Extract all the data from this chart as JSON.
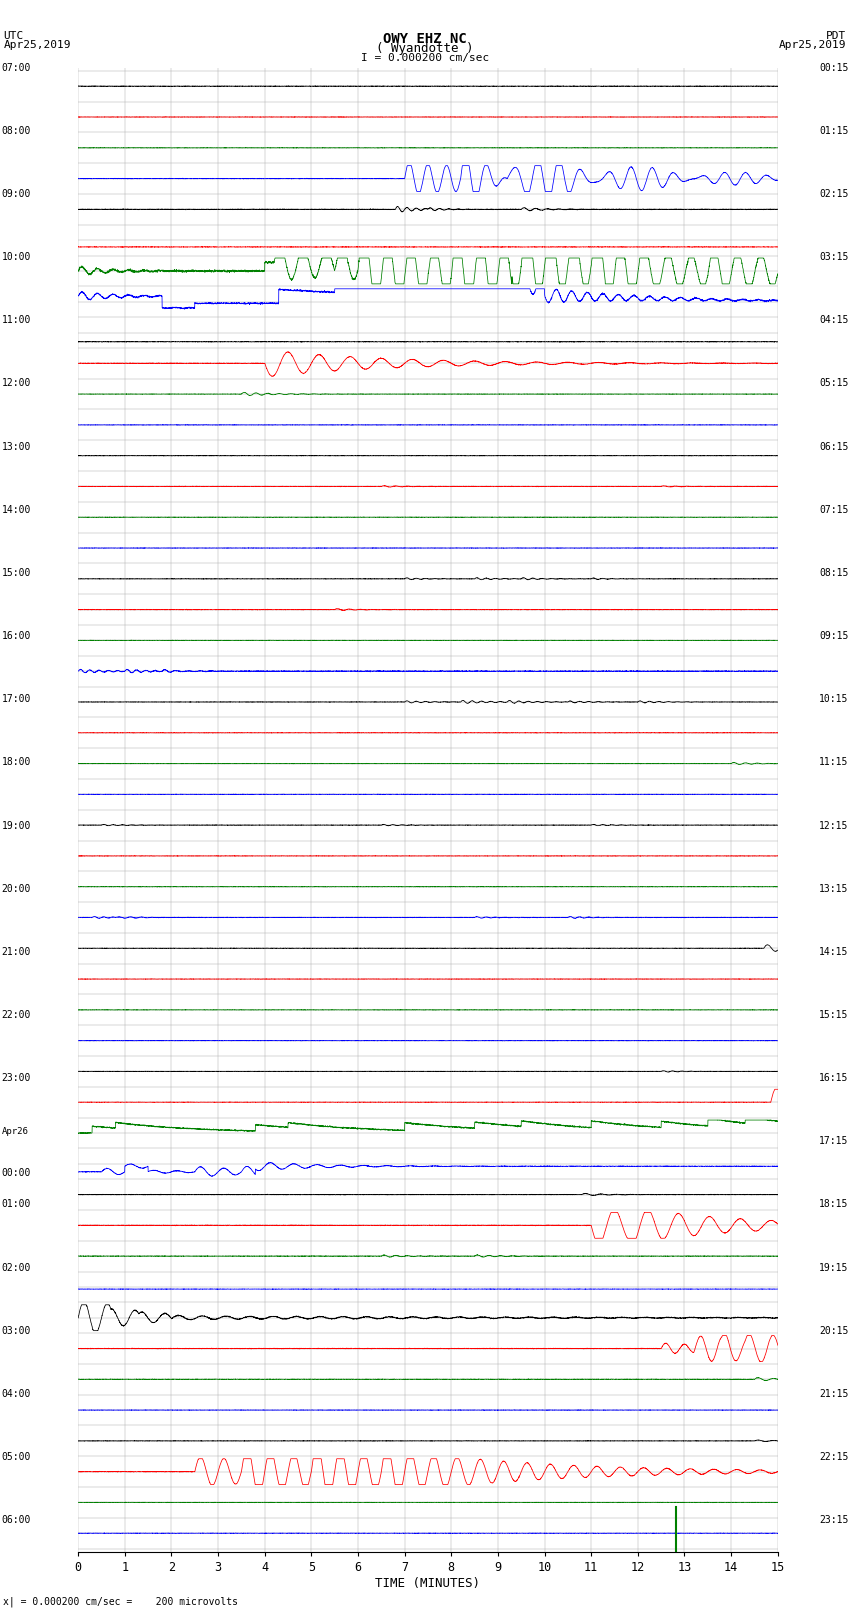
{
  "title_line1": "OWY EHZ NC",
  "title_line2": "( Wyandotte )",
  "scale_label": "I = 0.000200 cm/sec",
  "utc_label": "UTC",
  "utc_date": "Apr25,2019",
  "pdt_label": "PDT",
  "pdt_date": "Apr25,2019",
  "xlabel": "TIME (MINUTES)",
  "footer": "x| = 0.000200 cm/sec =    200 microvolts",
  "xlim": [
    0,
    15
  ],
  "xticks": [
    0,
    1,
    2,
    3,
    4,
    5,
    6,
    7,
    8,
    9,
    10,
    11,
    12,
    13,
    14,
    15
  ],
  "bg_color": "#ffffff",
  "grid_color": "#b0b0b0",
  "n_rows": 48,
  "left_times": [
    "07:00",
    "",
    "08:00",
    "",
    "09:00",
    "",
    "10:00",
    "",
    "11:00",
    "",
    "12:00",
    "",
    "13:00",
    "",
    "14:00",
    "",
    "15:00",
    "",
    "16:00",
    "",
    "17:00",
    "",
    "18:00",
    "",
    "19:00",
    "",
    "20:00",
    "",
    "21:00",
    "",
    "22:00",
    "",
    "23:00",
    "",
    "Apr26",
    "00:00",
    "01:00",
    "",
    "02:00",
    "",
    "03:00",
    "",
    "04:00",
    "",
    "05:00",
    "",
    "06:00",
    ""
  ],
  "right_times": [
    "00:15",
    "",
    "01:15",
    "",
    "02:15",
    "",
    "03:15",
    "",
    "04:15",
    "",
    "05:15",
    "",
    "06:15",
    "",
    "07:15",
    "",
    "08:15",
    "",
    "09:15",
    "",
    "10:15",
    "",
    "11:15",
    "",
    "12:15",
    "",
    "13:15",
    "",
    "14:15",
    "",
    "15:15",
    "",
    "16:15",
    "",
    "17:15",
    "",
    "18:15",
    "",
    "19:15",
    "",
    "20:15",
    "",
    "21:15",
    "",
    "22:15",
    "",
    "23:15",
    ""
  ],
  "trace_colors_cycle": [
    "black",
    "red",
    "green",
    "blue"
  ]
}
